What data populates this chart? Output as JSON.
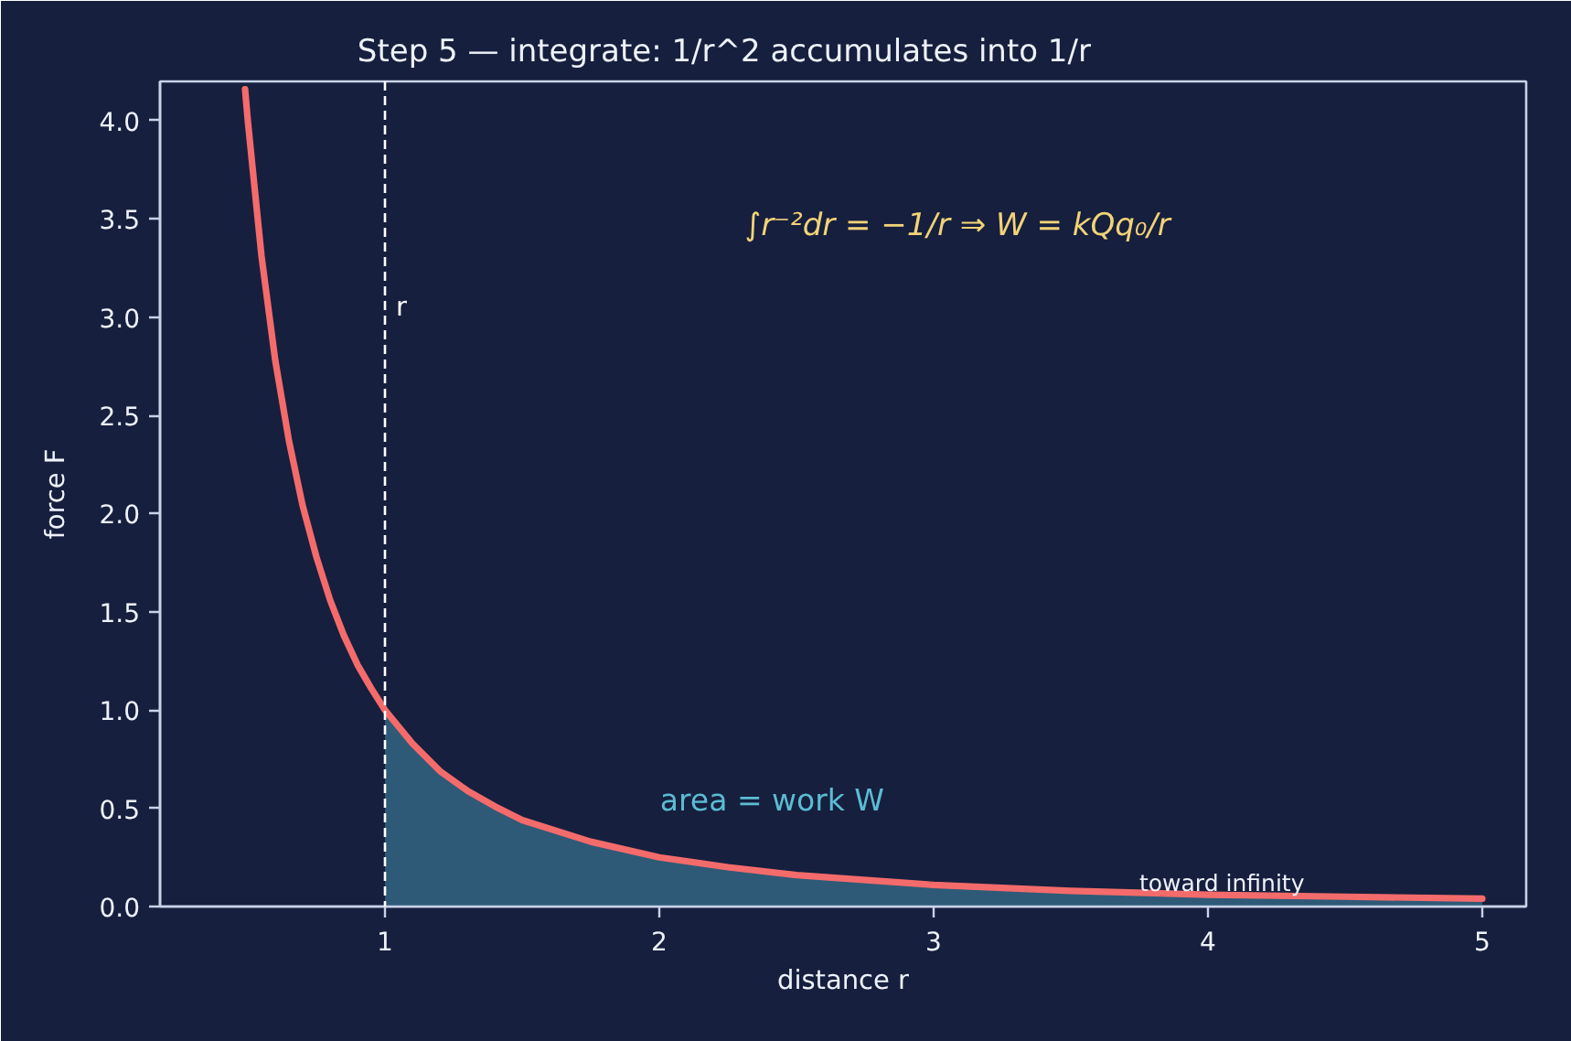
{
  "chart_data": {
    "type": "line",
    "title": "Step 5 — integrate: 1/r^2 accumulates into 1/r",
    "xlabel": "distance r",
    "ylabel": "force F",
    "xlim": [
      0.18,
      5.16
    ],
    "ylim": [
      0,
      4.2
    ],
    "xticks": [
      1,
      2,
      3,
      4,
      5
    ],
    "yticks": [
      {
        "value": 0,
        "label": "0.0"
      },
      {
        "value": 0.5,
        "label": "0.5"
      },
      {
        "value": 1,
        "label": "1.0"
      },
      {
        "value": 1.5,
        "label": "1.5"
      },
      {
        "value": 2,
        "label": "2.0"
      },
      {
        "value": 2.5,
        "label": "2.5"
      },
      {
        "value": 3,
        "label": "3.0"
      },
      {
        "value": 3.5,
        "label": "3.5"
      },
      {
        "value": 4,
        "label": "4.0"
      }
    ],
    "grid": false,
    "series": [
      {
        "type": "area",
        "color": "#2e5a78",
        "x": [
          1.0,
          1.1,
          1.2,
          1.3,
          1.4,
          1.5,
          1.75,
          2.0,
          2.25,
          2.5,
          3.0,
          3.5,
          4.0,
          4.5,
          5.0
        ],
        "values": [
          1.0,
          0.83,
          0.69,
          0.59,
          0.51,
          0.44,
          0.33,
          0.25,
          0.2,
          0.16,
          0.11,
          0.08,
          0.06,
          0.05,
          0.04
        ]
      },
      {
        "color": "#f46b6b",
        "x": [
          0.49,
          0.5,
          0.55,
          0.6,
          0.65,
          0.7,
          0.75,
          0.8,
          0.85,
          0.9,
          0.95,
          1.0,
          1.1,
          1.2,
          1.3,
          1.4,
          1.5,
          1.75,
          2.0,
          2.25,
          2.5,
          3.0,
          3.5,
          4.0,
          4.5,
          5.0
        ],
        "values": [
          4.16,
          4.0,
          3.31,
          2.78,
          2.37,
          2.04,
          1.78,
          1.56,
          1.38,
          1.23,
          1.11,
          1.0,
          0.83,
          0.69,
          0.59,
          0.51,
          0.44,
          0.33,
          0.25,
          0.2,
          0.16,
          0.11,
          0.08,
          0.06,
          0.05,
          0.04
        ]
      }
    ],
    "ref_lines": [
      {
        "axis": "x",
        "value": 1,
        "label": "r",
        "color": "#ffffff",
        "line_style": "dashed"
      }
    ],
    "annotations": [
      "∫r⁻²dr = −1/r ⇒ W = kQq₀/r",
      "area = work W",
      {
        "text": "toward infinity",
        "x": 3.75,
        "y": 0.05
      }
    ]
  }
}
